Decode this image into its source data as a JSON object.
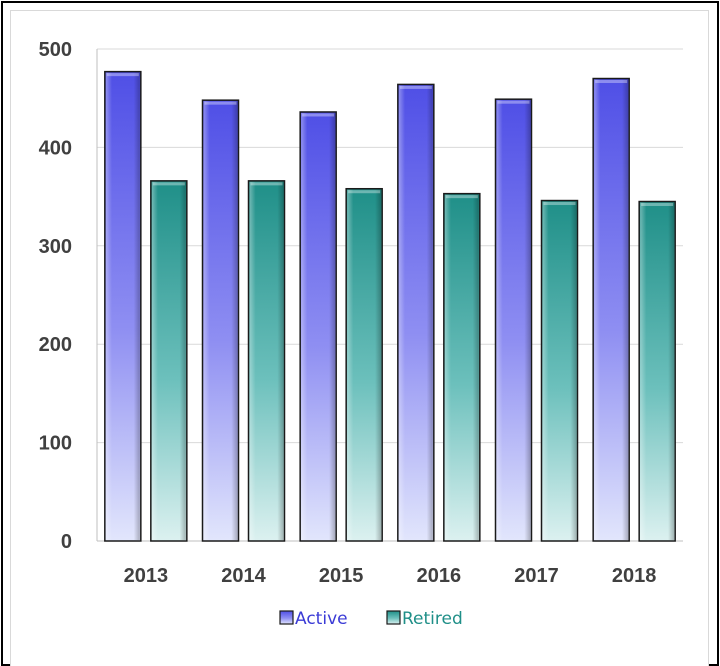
{
  "chart_data": {
    "type": "bar",
    "title": "",
    "xlabel": "",
    "ylabel": "",
    "categories": [
      "2013",
      "2014",
      "2015",
      "2016",
      "2017",
      "2018"
    ],
    "series": [
      {
        "name": "Active",
        "values": [
          477,
          448,
          436,
          464,
          449,
          470
        ],
        "color": "#5a5ae8"
      },
      {
        "name": "Retired",
        "values": [
          366,
          366,
          358,
          353,
          346,
          345
        ],
        "color": "#2a9a92"
      }
    ],
    "ylim": [
      0,
      500
    ],
    "yticks": [
      "0",
      "100",
      "200",
      "300",
      "400",
      "500"
    ],
    "grid": true,
    "legend": "bottom-center"
  }
}
